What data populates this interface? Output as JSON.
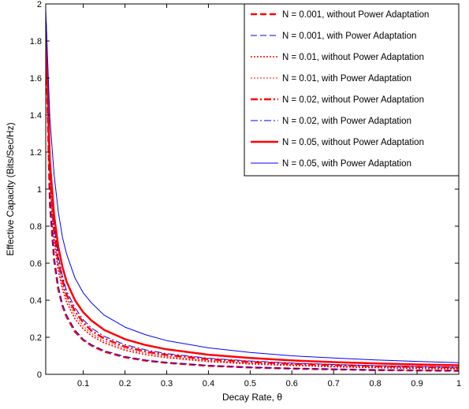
{
  "chart_data": {
    "type": "line",
    "xlabel": "Decay Rate, θ",
    "ylabel": "Effective Capacity (Bits/Sec/Hz)",
    "xlim": [
      0.01,
      1
    ],
    "ylim": [
      0,
      2
    ],
    "x_ticks": [
      0.1,
      0.2,
      0.3,
      0.4,
      0.5,
      0.6,
      0.7,
      0.8,
      0.9,
      1
    ],
    "x_tick_labels": [
      "0.1",
      "0.2",
      "0.3",
      "0.4",
      "0.5",
      "0.6",
      "0.7",
      "0.8",
      "0.9",
      "1"
    ],
    "y_ticks": [
      0,
      0.2,
      0.4,
      0.6,
      0.8,
      1,
      1.2,
      1.4,
      1.6,
      1.8,
      2
    ],
    "y_tick_labels": [
      "0",
      "0.2",
      "0.4",
      "0.6",
      "0.8",
      "1",
      "1.2",
      "1.4",
      "1.6",
      "1.8",
      "2"
    ],
    "grid": false,
    "legend_position": "top-right",
    "x": [
      0.01,
      0.02,
      0.03,
      0.04,
      0.05,
      0.06,
      0.08,
      0.1,
      0.12,
      0.15,
      0.2,
      0.25,
      0.3,
      0.4,
      0.5,
      0.6,
      0.7,
      0.8,
      0.9,
      1.0
    ],
    "series": [
      {
        "name": "N = 0.001, without Power Adaptation",
        "color": "#ff0000",
        "style": "dashed",
        "width": "thick",
        "values": [
          1.85,
          0.92,
          0.62,
          0.46,
          0.37,
          0.31,
          0.23,
          0.185,
          0.155,
          0.123,
          0.092,
          0.074,
          0.062,
          0.046,
          0.037,
          0.031,
          0.027,
          0.023,
          0.021,
          0.019
        ]
      },
      {
        "name": "N = 0.001, with Power Adaptation",
        "color": "#0000ff",
        "style": "dashed",
        "width": "thin",
        "values": [
          1.9,
          0.95,
          0.64,
          0.48,
          0.38,
          0.32,
          0.24,
          0.19,
          0.16,
          0.128,
          0.096,
          0.077,
          0.064,
          0.048,
          0.038,
          0.032,
          0.028,
          0.024,
          0.022,
          0.02
        ]
      },
      {
        "name": "N = 0.01, without Power Adaptation",
        "color": "#ff0000",
        "style": "dotted",
        "width": "medium",
        "values": [
          1.87,
          1.02,
          0.72,
          0.56,
          0.46,
          0.39,
          0.3,
          0.245,
          0.208,
          0.17,
          0.13,
          0.106,
          0.09,
          0.069,
          0.056,
          0.048,
          0.041,
          0.036,
          0.032,
          0.029
        ]
      },
      {
        "name": "N = 0.01, with Power Adaptation",
        "color": "#ff0000",
        "style": "dotted",
        "width": "thin",
        "values": [
          1.9,
          1.05,
          0.75,
          0.59,
          0.48,
          0.41,
          0.32,
          0.26,
          0.22,
          0.18,
          0.14,
          0.115,
          0.097,
          0.075,
          0.061,
          0.052,
          0.045,
          0.04,
          0.036,
          0.032
        ]
      },
      {
        "name": "N = 0.02, without Power Adaptation",
        "color": "#ff0000",
        "style": "dashdot",
        "width": "thick",
        "values": [
          1.88,
          1.08,
          0.78,
          0.61,
          0.51,
          0.43,
          0.34,
          0.28,
          0.235,
          0.193,
          0.15,
          0.123,
          0.105,
          0.082,
          0.067,
          0.057,
          0.05,
          0.044,
          0.04,
          0.036
        ]
      },
      {
        "name": "N = 0.02, with Power Adaptation",
        "color": "#0000ff",
        "style": "dashdot",
        "width": "thin",
        "values": [
          1.93,
          1.12,
          0.81,
          0.64,
          0.53,
          0.45,
          0.36,
          0.295,
          0.25,
          0.205,
          0.16,
          0.132,
          0.112,
          0.087,
          0.072,
          0.061,
          0.053,
          0.047,
          0.042,
          0.038
        ]
      },
      {
        "name": "N = 0.05, without Power Adaptation",
        "color": "#ff0000",
        "style": "solid",
        "width": "thick",
        "values": [
          1.9,
          1.15,
          0.86,
          0.69,
          0.58,
          0.5,
          0.4,
          0.335,
          0.29,
          0.24,
          0.19,
          0.158,
          0.135,
          0.106,
          0.088,
          0.075,
          0.066,
          0.059,
          0.053,
          0.049
        ]
      },
      {
        "name": "N = 0.05, with Power Adaptation",
        "color": "#0000ff",
        "style": "solid",
        "width": "thin",
        "values": [
          1.97,
          1.38,
          1.08,
          0.88,
          0.74,
          0.65,
          0.52,
          0.44,
          0.385,
          0.32,
          0.255,
          0.213,
          0.182,
          0.143,
          0.118,
          0.1,
          0.088,
          0.078,
          0.07,
          0.063
        ]
      }
    ]
  }
}
